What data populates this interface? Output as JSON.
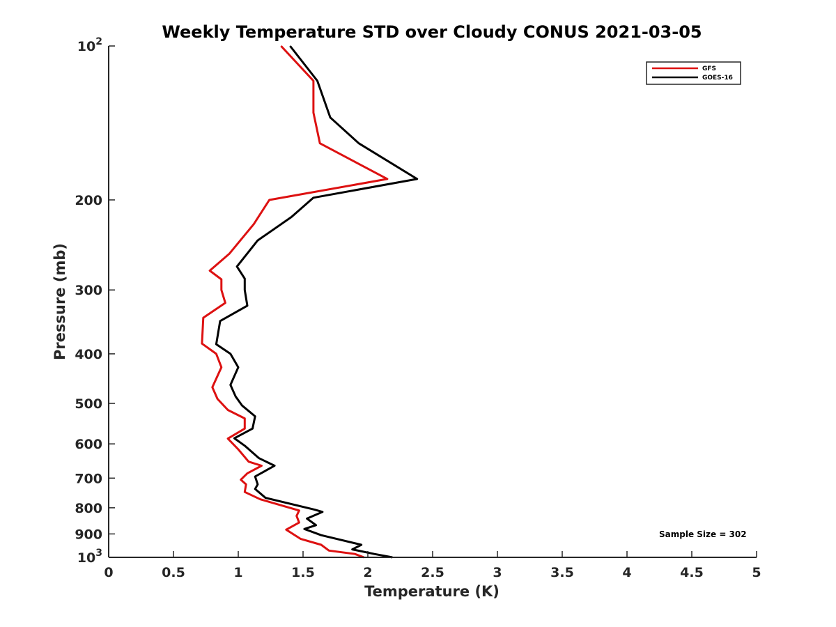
{
  "chart_data": {
    "type": "line",
    "title": "Weekly Temperature STD over Cloudy CONUS 2021-03-05",
    "xlabel": "Temperature (K)",
    "ylabel": "Pressure (mb)",
    "xlim": [
      0,
      5
    ],
    "ylim": [
      100,
      1000
    ],
    "yscale": "log",
    "y_reversed": true,
    "grid": false,
    "xticks": [
      {
        "value": 0,
        "label": "0"
      },
      {
        "value": 0.5,
        "label": "0.5"
      },
      {
        "value": 1,
        "label": "1"
      },
      {
        "value": 1.5,
        "label": "1.5"
      },
      {
        "value": 2,
        "label": "2"
      },
      {
        "value": 2.5,
        "label": "2.5"
      },
      {
        "value": 3,
        "label": "3"
      },
      {
        "value": 3.5,
        "label": "3.5"
      },
      {
        "value": 4,
        "label": "4"
      },
      {
        "value": 4.5,
        "label": "4.5"
      },
      {
        "value": 5,
        "label": "5"
      }
    ],
    "yticks": [
      {
        "value": 100,
        "label": "10",
        "sup": "2"
      },
      {
        "value": 200,
        "label": "200",
        "sup": ""
      },
      {
        "value": 300,
        "label": "300",
        "sup": ""
      },
      {
        "value": 400,
        "label": "400",
        "sup": ""
      },
      {
        "value": 500,
        "label": "500",
        "sup": ""
      },
      {
        "value": 600,
        "label": "600",
        "sup": ""
      },
      {
        "value": 700,
        "label": "700",
        "sup": ""
      },
      {
        "value": 800,
        "label": "800",
        "sup": ""
      },
      {
        "value": 900,
        "label": "900",
        "sup": ""
      },
      {
        "value": 1000,
        "label": "10",
        "sup": "3"
      }
    ],
    "legend_position": "top-right",
    "annotation": "Sample Size = 302",
    "series": [
      {
        "name": "GFS",
        "color": "#dd1111",
        "points": [
          {
            "t": 1.33,
            "p": 100
          },
          {
            "t": 1.58,
            "p": 117
          },
          {
            "t": 1.58,
            "p": 135
          },
          {
            "t": 1.63,
            "p": 155
          },
          {
            "t": 2.15,
            "p": 182
          },
          {
            "t": 1.24,
            "p": 200
          },
          {
            "t": 1.12,
            "p": 223
          },
          {
            "t": 0.93,
            "p": 255
          },
          {
            "t": 0.78,
            "p": 275
          },
          {
            "t": 0.87,
            "p": 286
          },
          {
            "t": 0.87,
            "p": 300
          },
          {
            "t": 0.9,
            "p": 318
          },
          {
            "t": 0.73,
            "p": 340
          },
          {
            "t": 0.72,
            "p": 382
          },
          {
            "t": 0.83,
            "p": 400
          },
          {
            "t": 0.87,
            "p": 425
          },
          {
            "t": 0.8,
            "p": 465
          },
          {
            "t": 0.84,
            "p": 490
          },
          {
            "t": 0.92,
            "p": 515
          },
          {
            "t": 1.05,
            "p": 535
          },
          {
            "t": 1.05,
            "p": 560
          },
          {
            "t": 0.92,
            "p": 586
          },
          {
            "t": 1.0,
            "p": 615
          },
          {
            "t": 1.08,
            "p": 650
          },
          {
            "t": 1.18,
            "p": 662
          },
          {
            "t": 1.07,
            "p": 685
          },
          {
            "t": 1.02,
            "p": 705
          },
          {
            "t": 1.06,
            "p": 720
          },
          {
            "t": 1.05,
            "p": 745
          },
          {
            "t": 1.17,
            "p": 770
          },
          {
            "t": 1.47,
            "p": 810
          },
          {
            "t": 1.45,
            "p": 830
          },
          {
            "t": 1.47,
            "p": 855
          },
          {
            "t": 1.37,
            "p": 883
          },
          {
            "t": 1.48,
            "p": 920
          },
          {
            "t": 1.64,
            "p": 945
          },
          {
            "t": 1.7,
            "p": 970
          },
          {
            "t": 1.9,
            "p": 985
          },
          {
            "t": 1.97,
            "p": 1000
          }
        ]
      },
      {
        "name": "GOES-16",
        "color": "#000000",
        "points": [
          {
            "t": 1.4,
            "p": 100
          },
          {
            "t": 1.61,
            "p": 117
          },
          {
            "t": 1.71,
            "p": 138
          },
          {
            "t": 1.93,
            "p": 155
          },
          {
            "t": 2.38,
            "p": 182
          },
          {
            "t": 1.58,
            "p": 198
          },
          {
            "t": 1.41,
            "p": 216
          },
          {
            "t": 1.15,
            "p": 240
          },
          {
            "t": 0.99,
            "p": 270
          },
          {
            "t": 1.05,
            "p": 285
          },
          {
            "t": 1.05,
            "p": 300
          },
          {
            "t": 1.07,
            "p": 322
          },
          {
            "t": 0.86,
            "p": 345
          },
          {
            "t": 0.83,
            "p": 383
          },
          {
            "t": 0.94,
            "p": 400
          },
          {
            "t": 1.0,
            "p": 425
          },
          {
            "t": 0.94,
            "p": 460
          },
          {
            "t": 0.98,
            "p": 485
          },
          {
            "t": 1.03,
            "p": 505
          },
          {
            "t": 1.13,
            "p": 530
          },
          {
            "t": 1.11,
            "p": 560
          },
          {
            "t": 0.97,
            "p": 585
          },
          {
            "t": 1.05,
            "p": 605
          },
          {
            "t": 1.16,
            "p": 640
          },
          {
            "t": 1.28,
            "p": 662
          },
          {
            "t": 1.13,
            "p": 695
          },
          {
            "t": 1.15,
            "p": 720
          },
          {
            "t": 1.13,
            "p": 735
          },
          {
            "t": 1.21,
            "p": 765
          },
          {
            "t": 1.59,
            "p": 807
          },
          {
            "t": 1.65,
            "p": 815
          },
          {
            "t": 1.53,
            "p": 840
          },
          {
            "t": 1.6,
            "p": 865
          },
          {
            "t": 1.51,
            "p": 880
          },
          {
            "t": 1.64,
            "p": 905
          },
          {
            "t": 1.95,
            "p": 945
          },
          {
            "t": 1.88,
            "p": 965
          },
          {
            "t": 2.05,
            "p": 985
          },
          {
            "t": 2.19,
            "p": 1000
          }
        ]
      }
    ]
  }
}
